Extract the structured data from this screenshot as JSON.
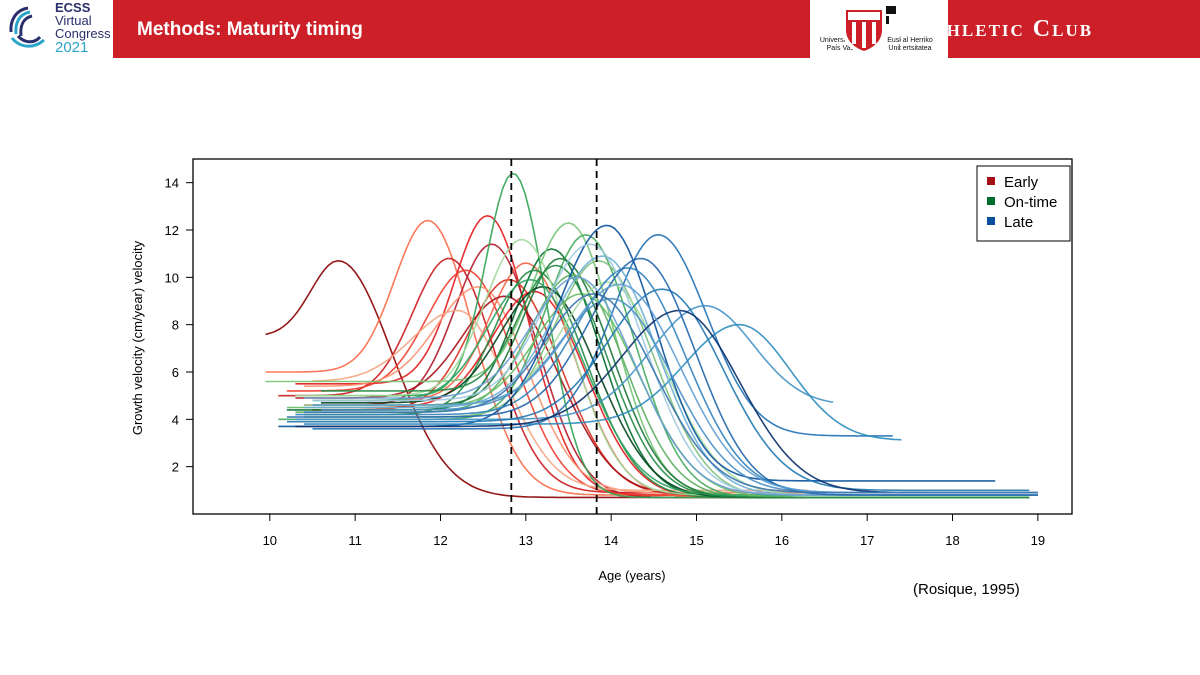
{
  "header": {
    "conference_logo": {
      "line1": "ECSS",
      "line2": "Virtual",
      "line3": "Congress",
      "line4": "2021"
    },
    "title": "Methods: Maturity timing",
    "university_logo": {
      "text_left": "Universidad del País Vasco",
      "text_right": "Euskal Herriko Unibertsitatea"
    },
    "club_name": "Athletic Club",
    "colors": {
      "band": "#cc1f28",
      "text": "#ffffff"
    }
  },
  "citation": "(Rosique, 1995)",
  "chart_data": {
    "type": "line",
    "xlabel": "Age (years)",
    "ylabel": "Growth velocity (cm/year) velocity",
    "xlim": [
      9.1,
      19.4
    ],
    "ylim": [
      0.0,
      15.0
    ],
    "x_ticks": [
      10,
      11,
      12,
      13,
      14,
      15,
      16,
      17,
      18,
      19
    ],
    "y_ticks": [
      2,
      4,
      6,
      8,
      10,
      12,
      14
    ],
    "grid": false,
    "legend_position": "top-right",
    "legend": [
      {
        "label": "Early",
        "color": "#a50f15"
      },
      {
        "label": "On-time",
        "color": "#006d2c"
      },
      {
        "label": "Late",
        "color": "#08519c"
      }
    ],
    "reference_lines": [
      12.83,
      13.83
    ],
    "series": [
      {
        "group": "Early",
        "color": "#8b0000",
        "start": 9.95,
        "end": 18.4,
        "peak_age": 10.8,
        "peak": 10.7,
        "base": 7.5,
        "final": 0.7,
        "w_left": 0.45,
        "w_right": 0.9
      },
      {
        "group": "Early",
        "color": "#fb6a4a",
        "start": 9.95,
        "end": 16.3,
        "peak_age": 11.85,
        "peak": 12.4,
        "base": 6.0,
        "final": 0.8,
        "w_left": 0.55,
        "w_right": 0.75
      },
      {
        "group": "Early",
        "color": "#e41a1c",
        "start": 10.3,
        "end": 16.6,
        "peak_age": 12.55,
        "peak": 12.6,
        "base": 5.5,
        "final": 0.8,
        "w_left": 0.55,
        "w_right": 0.7
      },
      {
        "group": "Early",
        "color": "#cb181d",
        "start": 10.1,
        "end": 16.2,
        "peak_age": 12.1,
        "peak": 10.8,
        "base": 5.0,
        "final": 0.9,
        "w_left": 0.6,
        "w_right": 0.75
      },
      {
        "group": "Early",
        "color": "#b2182b",
        "start": 10.4,
        "end": 16.8,
        "peak_age": 12.6,
        "peak": 11.4,
        "base": 4.6,
        "final": 0.7,
        "w_left": 0.6,
        "w_right": 0.75
      },
      {
        "group": "Early",
        "color": "#ef3b2c",
        "start": 10.2,
        "end": 16.5,
        "peak_age": 12.3,
        "peak": 10.3,
        "base": 5.2,
        "final": 0.8,
        "w_left": 0.65,
        "w_right": 0.8
      },
      {
        "group": "Early",
        "color": "#fc9272",
        "start": 10.4,
        "end": 16.4,
        "peak_age": 12.45,
        "peak": 9.6,
        "base": 5.4,
        "final": 0.9,
        "w_left": 0.7,
        "w_right": 0.8
      },
      {
        "group": "Early",
        "color": "#d7301f",
        "start": 10.5,
        "end": 16.7,
        "peak_age": 12.8,
        "peak": 9.9,
        "base": 4.4,
        "final": 0.8,
        "w_left": 0.65,
        "w_right": 0.85
      },
      {
        "group": "Early",
        "color": "#ef6548",
        "start": 10.6,
        "end": 17.0,
        "peak_age": 13.0,
        "peak": 10.6,
        "base": 4.8,
        "final": 0.7,
        "w_left": 0.6,
        "w_right": 0.8
      },
      {
        "group": "Early",
        "color": "#a50f15",
        "start": 10.3,
        "end": 16.9,
        "peak_age": 12.75,
        "peak": 9.2,
        "base": 4.9,
        "final": 0.8,
        "w_left": 0.7,
        "w_right": 0.9
      },
      {
        "group": "Early",
        "color": "#f4a582",
        "start": 10.5,
        "end": 16.3,
        "peak_age": 12.2,
        "peak": 8.6,
        "base": 5.6,
        "final": 1.0,
        "w_left": 0.75,
        "w_right": 0.8
      },
      {
        "group": "Early",
        "color": "#e31a1c",
        "start": 10.6,
        "end": 17.2,
        "peak_age": 13.1,
        "peak": 9.4,
        "base": 4.5,
        "final": 0.7,
        "w_left": 0.7,
        "w_right": 0.85
      },
      {
        "group": "On-time",
        "color": "#31a354",
        "start": 10.5,
        "end": 18.8,
        "peak_age": 12.85,
        "peak": 14.4,
        "base": 5.0,
        "final": 0.7,
        "w_left": 0.45,
        "w_right": 0.55
      },
      {
        "group": "On-time",
        "color": "#006d2c",
        "start": 10.2,
        "end": 18.9,
        "peak_age": 13.3,
        "peak": 11.2,
        "base": 4.4,
        "final": 0.7,
        "w_left": 0.6,
        "w_right": 0.8
      },
      {
        "group": "On-time",
        "color": "#74c476",
        "start": 9.95,
        "end": 18.7,
        "peak_age": 13.5,
        "peak": 12.3,
        "base": 5.6,
        "final": 0.8,
        "w_left": 0.6,
        "w_right": 0.75
      },
      {
        "group": "On-time",
        "color": "#238b45",
        "start": 10.4,
        "end": 18.9,
        "peak_age": 13.1,
        "peak": 10.3,
        "base": 4.2,
        "final": 0.7,
        "w_left": 0.65,
        "w_right": 0.85
      },
      {
        "group": "On-time",
        "color": "#41ab5d",
        "start": 10.1,
        "end": 18.8,
        "peak_age": 13.7,
        "peak": 11.8,
        "base": 4.0,
        "final": 0.7,
        "w_left": 0.65,
        "w_right": 0.8
      },
      {
        "group": "On-time",
        "color": "#a1d99b",
        "start": 10.3,
        "end": 18.7,
        "peak_age": 12.95,
        "peak": 11.6,
        "base": 5.0,
        "final": 0.8,
        "w_left": 0.6,
        "w_right": 0.8
      },
      {
        "group": "On-time",
        "color": "#1b7837",
        "start": 10.5,
        "end": 18.9,
        "peak_age": 13.4,
        "peak": 10.8,
        "base": 4.6,
        "final": 0.7,
        "w_left": 0.6,
        "w_right": 0.85
      },
      {
        "group": "On-time",
        "color": "#5aae61",
        "start": 10.3,
        "end": 18.9,
        "peak_age": 13.55,
        "peak": 10.1,
        "base": 4.3,
        "final": 0.7,
        "w_left": 0.7,
        "w_right": 0.85
      },
      {
        "group": "On-time",
        "color": "#00441b",
        "start": 10.6,
        "end": 18.8,
        "peak_age": 13.2,
        "peak": 9.6,
        "base": 4.7,
        "final": 0.7,
        "w_left": 0.7,
        "w_right": 0.9
      },
      {
        "group": "On-time",
        "color": "#7fbf7b",
        "start": 10.4,
        "end": 18.9,
        "peak_age": 13.85,
        "peak": 10.7,
        "base": 4.1,
        "final": 0.7,
        "w_left": 0.7,
        "w_right": 0.9
      },
      {
        "group": "On-time",
        "color": "#2ca25f",
        "start": 10.5,
        "end": 18.8,
        "peak_age": 13.05,
        "peak": 9.9,
        "base": 4.8,
        "final": 0.8,
        "w_left": 0.7,
        "w_right": 0.9
      },
      {
        "group": "On-time",
        "color": "#66bd63",
        "start": 10.2,
        "end": 18.9,
        "peak_age": 13.65,
        "peak": 9.3,
        "base": 4.5,
        "final": 0.7,
        "w_left": 0.75,
        "w_right": 0.95
      },
      {
        "group": "On-time",
        "color": "#238b45",
        "start": 10.6,
        "end": 18.9,
        "peak_age": 13.35,
        "peak": 10.5,
        "base": 5.2,
        "final": 0.7,
        "w_left": 0.6,
        "w_right": 0.85
      },
      {
        "group": "On-time",
        "color": "#a6dba0",
        "start": 10.4,
        "end": 18.9,
        "peak_age": 13.95,
        "peak": 9.8,
        "base": 4.6,
        "final": 0.8,
        "w_left": 0.75,
        "w_right": 0.95
      },
      {
        "group": "Late",
        "color": "#2171b5",
        "start": 10.5,
        "end": 17.3,
        "peak_age": 14.55,
        "peak": 11.8,
        "base": 3.6,
        "final": 3.3,
        "w_left": 0.75,
        "w_right": 0.8
      },
      {
        "group": "Late",
        "color": "#08519c",
        "start": 10.1,
        "end": 18.5,
        "peak_age": 13.95,
        "peak": 12.2,
        "base": 3.7,
        "final": 1.4,
        "w_left": 0.8,
        "w_right": 0.8
      },
      {
        "group": "Late",
        "color": "#4292c6",
        "start": 10.3,
        "end": 16.6,
        "peak_age": 15.1,
        "peak": 8.8,
        "base": 4.0,
        "final": 4.6,
        "w_left": 0.9,
        "w_right": 0.8
      },
      {
        "group": "Late",
        "color": "#2b8cbe",
        "start": 10.4,
        "end": 17.4,
        "peak_age": 15.5,
        "peak": 8.0,
        "base": 3.8,
        "final": 3.1,
        "w_left": 0.9,
        "w_right": 0.85
      },
      {
        "group": "Late",
        "color": "#6baed6",
        "start": 10.4,
        "end": 19.0,
        "peak_age": 13.9,
        "peak": 10.9,
        "base": 4.5,
        "final": 0.8,
        "w_left": 0.8,
        "w_right": 0.9
      },
      {
        "group": "Late",
        "color": "#3182bd",
        "start": 10.3,
        "end": 19.0,
        "peak_age": 14.2,
        "peak": 10.4,
        "base": 4.2,
        "final": 0.9,
        "w_left": 0.85,
        "w_right": 0.95
      },
      {
        "group": "Late",
        "color": "#9ecae1",
        "start": 10.5,
        "end": 19.0,
        "peak_age": 13.75,
        "peak": 11.4,
        "base": 4.8,
        "final": 0.8,
        "w_left": 0.75,
        "w_right": 0.9
      },
      {
        "group": "Late",
        "color": "#1f78b4",
        "start": 10.2,
        "end": 18.9,
        "peak_age": 14.6,
        "peak": 9.5,
        "base": 3.9,
        "final": 1.0,
        "w_left": 0.9,
        "w_right": 1.0
      },
      {
        "group": "Late",
        "color": "#4a90c8",
        "start": 10.6,
        "end": 18.9,
        "peak_age": 14.0,
        "peak": 9.1,
        "base": 4.4,
        "final": 0.9,
        "w_left": 0.85,
        "w_right": 1.0
      },
      {
        "group": "Late",
        "color": "#08306b",
        "start": 10.3,
        "end": 19.0,
        "peak_age": 14.8,
        "peak": 8.6,
        "base": 3.7,
        "final": 0.9,
        "w_left": 0.95,
        "w_right": 1.0
      },
      {
        "group": "Late",
        "color": "#6a9fd4",
        "start": 10.4,
        "end": 19.0,
        "peak_age": 13.6,
        "peak": 10.0,
        "base": 4.9,
        "final": 0.8,
        "w_left": 0.75,
        "w_right": 0.95
      },
      {
        "group": "Late",
        "color": "#2166ac",
        "start": 10.2,
        "end": 19.0,
        "peak_age": 14.35,
        "peak": 10.8,
        "base": 4.1,
        "final": 0.8,
        "w_left": 0.85,
        "w_right": 0.9
      },
      {
        "group": "Late",
        "color": "#5e9dd3",
        "start": 10.5,
        "end": 19.0,
        "peak_age": 14.1,
        "peak": 9.7,
        "base": 4.6,
        "final": 0.9,
        "w_left": 0.85,
        "w_right": 1.0
      },
      {
        "group": "Late",
        "color": "#3a75b0",
        "start": 10.4,
        "end": 19.0,
        "peak_age": 13.8,
        "peak": 9.3,
        "base": 4.3,
        "final": 0.9,
        "w_left": 0.8,
        "w_right": 1.0
      }
    ]
  }
}
